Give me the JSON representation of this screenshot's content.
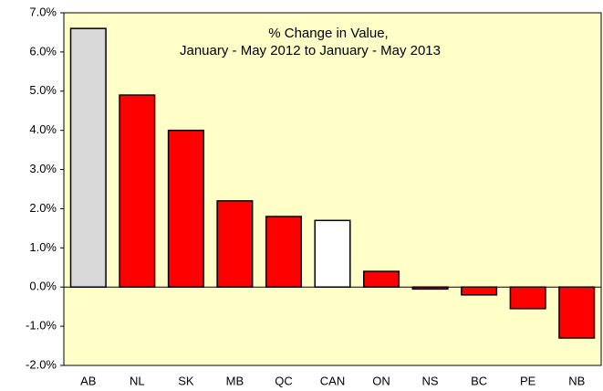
{
  "chart_data": {
    "type": "bar",
    "title": "% Change in Value,",
    "subtitle": "January - May 2012 to January - May 2013",
    "categories": [
      "AB",
      "NL",
      "SK",
      "MB",
      "QC",
      "CAN",
      "ON",
      "NS",
      "BC",
      "PE",
      "NB"
    ],
    "values": [
      6.6,
      4.9,
      4.0,
      2.2,
      1.8,
      1.7,
      0.4,
      -0.05,
      -0.2,
      -0.55,
      -1.3
    ],
    "colors": [
      "#d9d9d9",
      "#ff0000",
      "#ff0000",
      "#ff0000",
      "#ff0000",
      "#ffffff",
      "#ff0000",
      "#ff0000",
      "#ff0000",
      "#ff0000",
      "#ff0000"
    ],
    "ylim": [
      -2,
      7
    ],
    "yticks": [
      {
        "value": -2,
        "label": "-2.0%"
      },
      {
        "value": -1,
        "label": "-1.0%"
      },
      {
        "value": 0,
        "label": "0.0%"
      },
      {
        "value": 1,
        "label": "1.0%"
      },
      {
        "value": 2,
        "label": "2.0%"
      },
      {
        "value": 3,
        "label": "3.0%"
      },
      {
        "value": 4,
        "label": "4.0%"
      },
      {
        "value": 5,
        "label": "5.0%"
      },
      {
        "value": 6,
        "label": "6.0%"
      },
      {
        "value": 7,
        "label": "7.0%"
      }
    ],
    "plot_background": "#ffffc8"
  }
}
